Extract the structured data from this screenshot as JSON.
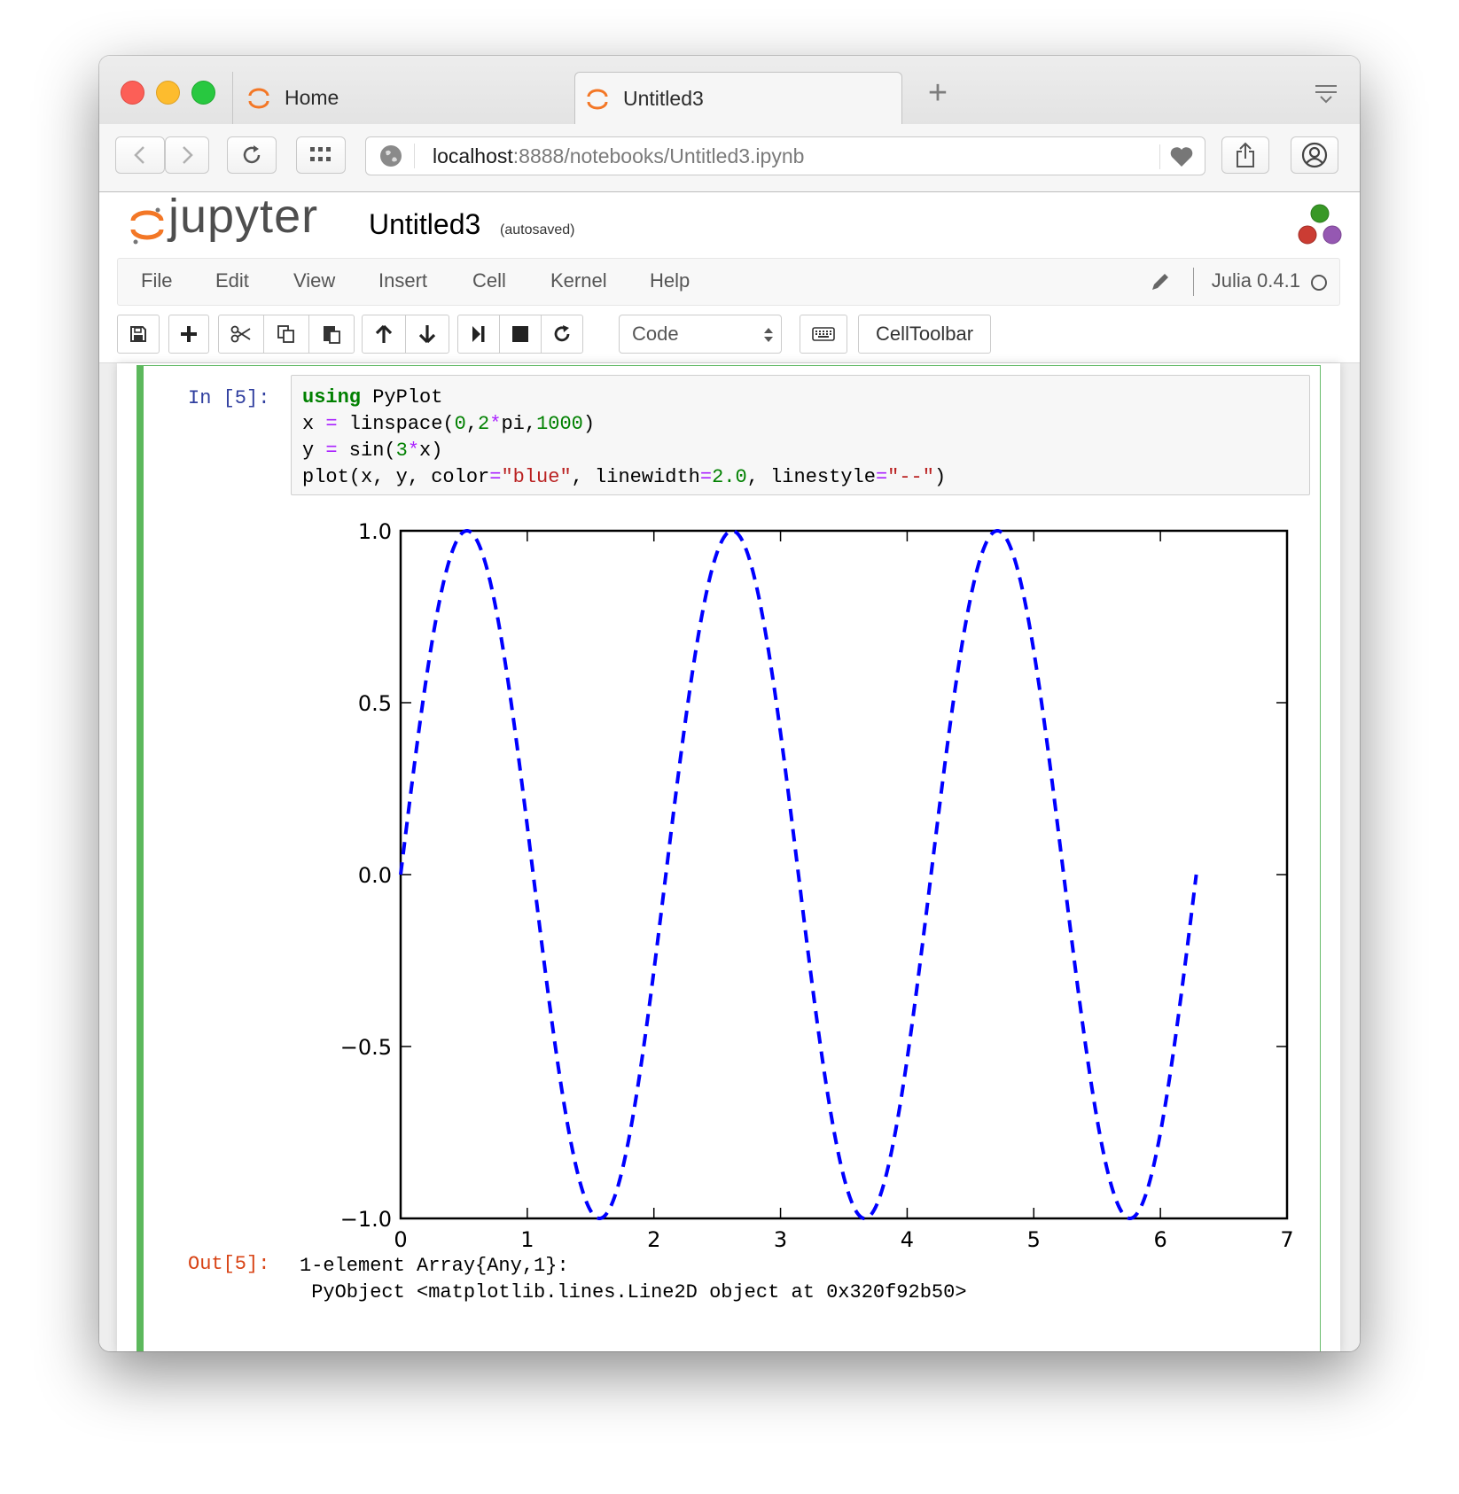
{
  "browser": {
    "tabs": [
      {
        "label": "Home",
        "active": false
      },
      {
        "label": "Untitled3",
        "active": true
      }
    ],
    "url_host": "localhost",
    "url_rest": ":8888/notebooks/Untitled3.ipynb"
  },
  "jupyter": {
    "logo_text": "jupyter",
    "notebook_name": "Untitled3",
    "autosave_status": "(autosaved)",
    "kernel": "Julia 0.4.1"
  },
  "menu": [
    "File",
    "Edit",
    "View",
    "Insert",
    "Cell",
    "Kernel",
    "Help"
  ],
  "toolbar": {
    "cell_type": "Code",
    "celltoolbar_label": "CellToolbar",
    "icons": [
      "save-icon",
      "plus-icon",
      "cut-icon",
      "copy-icon",
      "paste-icon",
      "arrow-up-icon",
      "arrow-down-icon",
      "run-icon",
      "stop-icon",
      "restart-icon",
      "keyboard-icon"
    ]
  },
  "cell": {
    "in_prompt": "In [5]:",
    "out_prompt": "Out[5]:",
    "code_lines": [
      "using PyPlot",
      "x = linspace(0,2*pi,1000)",
      "y = sin(3*x)",
      "plot(x, y, color=\"blue\", linewidth=2.0, linestyle=\"--\")"
    ],
    "output_lines": [
      "1-element Array{Any,1}:",
      " PyObject <matplotlib.lines.Line2D object at 0x320f92b50>"
    ]
  },
  "chart_data": {
    "type": "line",
    "function": "y = sin(3x)",
    "x_range": [
      0,
      6.2832
    ],
    "num_points": 1000,
    "xlim": [
      0,
      7
    ],
    "ylim": [
      -1.0,
      1.0
    ],
    "xticks": [
      "0",
      "1",
      "2",
      "3",
      "4",
      "5",
      "6",
      "7"
    ],
    "yticks": [
      "1.0",
      "0.5",
      "0.0",
      "−0.5",
      "−1.0"
    ],
    "series": [
      {
        "color": "#0000ff",
        "linestyle": "dashed",
        "linewidth": 2.0
      }
    ],
    "grid": false,
    "title": "",
    "xlabel": "",
    "ylabel": ""
  }
}
